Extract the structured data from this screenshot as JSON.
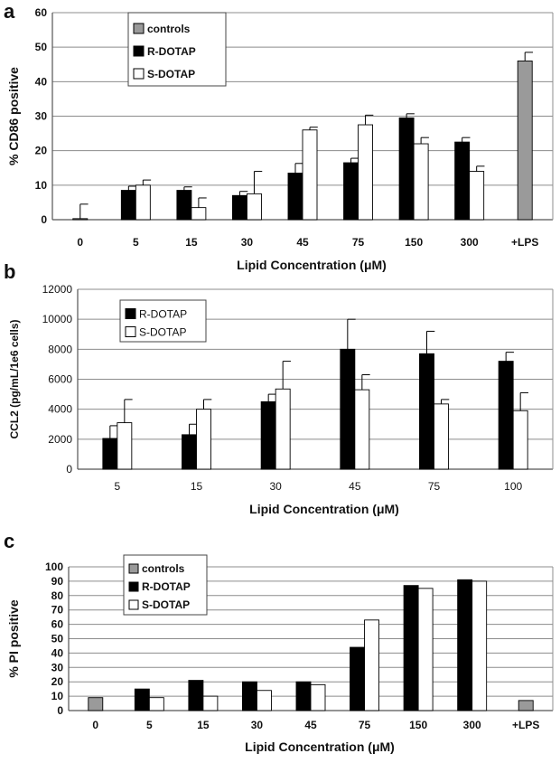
{
  "chart_data": [
    {
      "panel": "a",
      "type": "bar",
      "categories": [
        "0",
        "5",
        "15",
        "30",
        "45",
        "75",
        "150",
        "300",
        "+LPS"
      ],
      "xlabel": "Lipid Concentration (μM)",
      "ylabel": "% CD86 positive",
      "ylim": [
        0,
        60
      ],
      "yticks": [
        0,
        10,
        20,
        30,
        40,
        50,
        60
      ],
      "grid": true,
      "legend_position": "top-left",
      "series": [
        {
          "name": "controls",
          "color": "#9a9a9a",
          "values": [
            0.3,
            null,
            null,
            null,
            null,
            null,
            null,
            null,
            46
          ],
          "errors": [
            4.2,
            null,
            null,
            null,
            null,
            null,
            null,
            null,
            2.5
          ]
        },
        {
          "name": "R-DOTAP",
          "color": "#000000",
          "values": [
            null,
            8.5,
            8.5,
            7,
            13.5,
            16.5,
            29.5,
            22.5,
            null
          ],
          "errors": [
            null,
            1.2,
            1,
            1.2,
            2.8,
            1.3,
            1.2,
            1.3,
            null
          ]
        },
        {
          "name": "S-DOTAP",
          "color": "#ffffff",
          "values": [
            null,
            10,
            3.5,
            7.5,
            26,
            27.5,
            22,
            14,
            null
          ],
          "errors": [
            null,
            1.5,
            2.8,
            6.5,
            0.8,
            2.8,
            1.8,
            1.5,
            null
          ]
        }
      ]
    },
    {
      "panel": "b",
      "type": "bar",
      "categories": [
        "5",
        "15",
        "30",
        "45",
        "75",
        "100"
      ],
      "xlabel": "Lipid Concentration (μM)",
      "ylabel": "CCL2 (pg/mL/1e6 cells)",
      "ylim": [
        0,
        12000
      ],
      "yticks": [
        0,
        2000,
        4000,
        6000,
        8000,
        10000,
        12000
      ],
      "grid": true,
      "legend_position": "top-left",
      "series": [
        {
          "name": "R-DOTAP",
          "color": "#000000",
          "values": [
            2050,
            2300,
            4500,
            8000,
            7700,
            7200
          ],
          "errors": [
            850,
            700,
            500,
            2000,
            1500,
            600
          ]
        },
        {
          "name": "S-DOTAP",
          "color": "#ffffff",
          "values": [
            3100,
            4000,
            5350,
            5300,
            4350,
            3900
          ],
          "errors": [
            1550,
            650,
            1850,
            1000,
            300,
            1200
          ]
        }
      ]
    },
    {
      "panel": "c",
      "type": "bar",
      "categories": [
        "0",
        "5",
        "15",
        "30",
        "45",
        "75",
        "150",
        "300",
        "+LPS"
      ],
      "xlabel": "Lipid Concentration (μM)",
      "ylabel": "% PI positive",
      "ylim": [
        0,
        100
      ],
      "yticks": [
        0,
        10,
        20,
        30,
        40,
        50,
        60,
        70,
        80,
        90,
        100
      ],
      "grid": true,
      "legend_position": "top-left",
      "series": [
        {
          "name": "controls",
          "color": "#9a9a9a",
          "values": [
            9,
            null,
            null,
            null,
            null,
            null,
            null,
            null,
            7
          ],
          "errors": null
        },
        {
          "name": "R-DOTAP",
          "color": "#000000",
          "values": [
            null,
            15,
            21,
            20,
            20,
            44,
            87,
            91,
            null
          ],
          "errors": null
        },
        {
          "name": "S-DOTAP",
          "color": "#ffffff",
          "values": [
            null,
            9,
            10,
            14,
            18,
            63,
            85,
            90,
            null
          ],
          "errors": null
        }
      ]
    }
  ]
}
